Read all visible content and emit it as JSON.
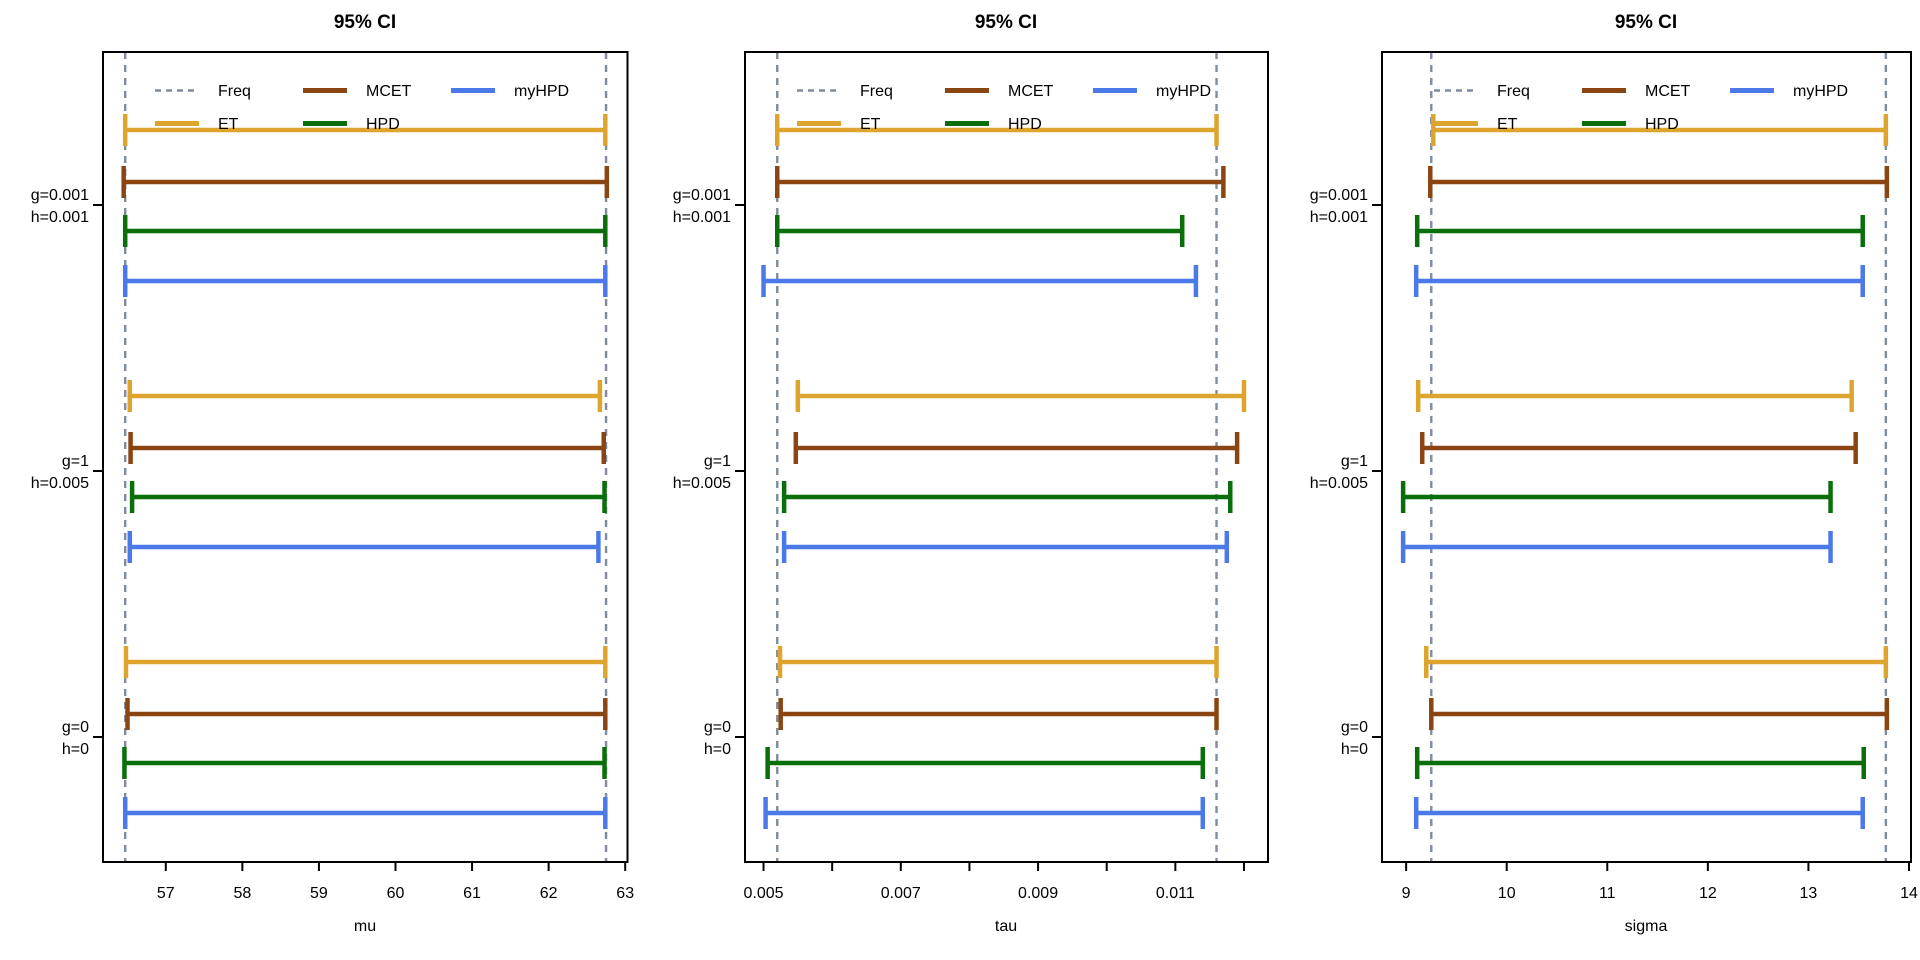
{
  "figure": {
    "background": "#ffffff",
    "frame_color": "#000000"
  },
  "series_styles": {
    "Freq": {
      "color": "#7E8C9C",
      "line": "dashed"
    },
    "ET": {
      "color": "#DEA52E",
      "line": "solid"
    },
    "MCET": {
      "color": "#8B4513",
      "line": "solid"
    },
    "HPD": {
      "color": "#0A6E0A",
      "line": "solid"
    },
    "myHPD": {
      "color": "#4B79E8",
      "line": "solid"
    }
  },
  "chart_data": [
    {
      "type": "interval",
      "title": "95% CI",
      "xlabel": "mu",
      "xlim": [
        56.18,
        63.03
      ],
      "xticks": [
        57,
        58,
        59,
        60,
        61,
        62,
        63
      ],
      "xtick_labels": [
        "57",
        "58",
        "59",
        "60",
        "61",
        "62",
        "63"
      ],
      "grid": false,
      "legend_position": "top-left-inside",
      "legend_columns": [
        [
          "Freq",
          "ET"
        ],
        [
          "MCET",
          "HPD"
        ],
        [
          "myHPD"
        ]
      ],
      "freq_ci": [
        56.47,
        62.75
      ],
      "groups": [
        {
          "label": [
            "g=0.001",
            "h=0.001"
          ],
          "series": [
            {
              "name": "ET",
              "ci": [
                56.47,
                62.74
              ]
            },
            {
              "name": "MCET",
              "ci": [
                56.45,
                62.76
              ]
            },
            {
              "name": "HPD",
              "ci": [
                56.47,
                62.74
              ]
            },
            {
              "name": "myHPD",
              "ci": [
                56.47,
                62.74
              ]
            }
          ]
        },
        {
          "label": [
            "g=1",
            "h=0.005"
          ],
          "series": [
            {
              "name": "ET",
              "ci": [
                56.53,
                62.67
              ]
            },
            {
              "name": "MCET",
              "ci": [
                56.54,
                62.72
              ]
            },
            {
              "name": "HPD",
              "ci": [
                56.56,
                62.73
              ]
            },
            {
              "name": "myHPD",
              "ci": [
                56.53,
                62.65
              ]
            }
          ]
        },
        {
          "label": [
            "g=0",
            "h=0"
          ],
          "series": [
            {
              "name": "ET",
              "ci": [
                56.48,
                62.74
              ]
            },
            {
              "name": "MCET",
              "ci": [
                56.5,
                62.74
              ]
            },
            {
              "name": "HPD",
              "ci": [
                56.46,
                62.73
              ]
            },
            {
              "name": "myHPD",
              "ci": [
                56.47,
                62.74
              ]
            }
          ]
        }
      ]
    },
    {
      "type": "interval",
      "title": "95% CI",
      "xlabel": "tau",
      "xlim": [
        0.00473,
        0.01235
      ],
      "xticks": [
        0.005,
        0.006,
        0.007,
        0.008,
        0.009,
        0.01,
        0.011,
        0.012
      ],
      "xtick_labels": [
        "0.005",
        "",
        "0.007",
        "",
        "0.009",
        "",
        "0.011",
        ""
      ],
      "grid": false,
      "legend_position": "top-left-inside",
      "legend_columns": [
        [
          "Freq",
          "ET"
        ],
        [
          "MCET",
          "HPD"
        ],
        [
          "myHPD"
        ]
      ],
      "freq_ci": [
        0.0052,
        0.0116
      ],
      "groups": [
        {
          "label": [
            "g=0.001",
            "h=0.001"
          ],
          "series": [
            {
              "name": "ET",
              "ci": [
                0.0052,
                0.0116
              ]
            },
            {
              "name": "MCET",
              "ci": [
                0.0052,
                0.0117
              ]
            },
            {
              "name": "HPD",
              "ci": [
                0.0052,
                0.0111
              ]
            },
            {
              "name": "myHPD",
              "ci": [
                0.005,
                0.0113
              ]
            }
          ]
        },
        {
          "label": [
            "g=1",
            "h=0.005"
          ],
          "series": [
            {
              "name": "ET",
              "ci": [
                0.0055,
                0.012
              ]
            },
            {
              "name": "MCET",
              "ci": [
                0.00547,
                0.0119
              ]
            },
            {
              "name": "HPD",
              "ci": [
                0.0053,
                0.0118
              ]
            },
            {
              "name": "myHPD",
              "ci": [
                0.0053,
                0.01175
              ]
            }
          ]
        },
        {
          "label": [
            "g=0",
            "h=0"
          ],
          "series": [
            {
              "name": "ET",
              "ci": [
                0.00524,
                0.0116
              ]
            },
            {
              "name": "MCET",
              "ci": [
                0.00525,
                0.0116
              ]
            },
            {
              "name": "HPD",
              "ci": [
                0.00506,
                0.0114
              ]
            },
            {
              "name": "myHPD",
              "ci": [
                0.00503,
                0.0114
              ]
            }
          ]
        }
      ]
    },
    {
      "type": "interval",
      "title": "95% CI",
      "xlabel": "sigma",
      "xlim": [
        8.76,
        14.02
      ],
      "xticks": [
        9,
        10,
        11,
        12,
        13,
        14
      ],
      "xtick_labels": [
        "9",
        "10",
        "11",
        "12",
        "13",
        "14"
      ],
      "grid": false,
      "legend_position": "top-left-inside",
      "legend_columns": [
        [
          "Freq",
          "ET"
        ],
        [
          "MCET",
          "HPD"
        ],
        [
          "myHPD"
        ]
      ],
      "freq_ci": [
        9.25,
        13.77
      ],
      "groups": [
        {
          "label": [
            "g=0.001",
            "h=0.001"
          ],
          "series": [
            {
              "name": "ET",
              "ci": [
                9.27,
                13.77
              ]
            },
            {
              "name": "MCET",
              "ci": [
                9.24,
                13.78
              ]
            },
            {
              "name": "HPD",
              "ci": [
                9.11,
                13.54
              ]
            },
            {
              "name": "myHPD",
              "ci": [
                9.1,
                13.54
              ]
            }
          ]
        },
        {
          "label": [
            "g=1",
            "h=0.005"
          ],
          "series": [
            {
              "name": "ET",
              "ci": [
                9.12,
                13.43
              ]
            },
            {
              "name": "MCET",
              "ci": [
                9.16,
                13.47
              ]
            },
            {
              "name": "HPD",
              "ci": [
                8.97,
                13.22
              ]
            },
            {
              "name": "myHPD",
              "ci": [
                8.97,
                13.22
              ]
            }
          ]
        },
        {
          "label": [
            "g=0",
            "h=0"
          ],
          "series": [
            {
              "name": "ET",
              "ci": [
                9.2,
                13.77
              ]
            },
            {
              "name": "MCET",
              "ci": [
                9.25,
                13.78
              ]
            },
            {
              "name": "HPD",
              "ci": [
                9.11,
                13.55
              ]
            },
            {
              "name": "myHPD",
              "ci": [
                9.1,
                13.54
              ]
            }
          ]
        }
      ]
    }
  ]
}
